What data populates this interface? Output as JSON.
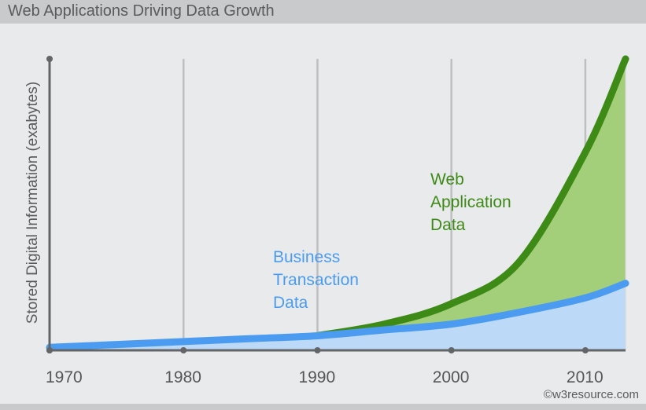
{
  "chart_data": {
    "type": "area",
    "title": "Web Applications Driving Data Growth",
    "ylabel": "Stored Digital Information (exabytes)",
    "xlabel": "",
    "x_ticks": [
      "1970",
      "1980",
      "1990",
      "2000",
      "2010"
    ],
    "xlim": [
      1970,
      2013
    ],
    "ylim": [
      0,
      100
    ],
    "grid": true,
    "stacked": true,
    "series": [
      {
        "name": "Business Transaction Data",
        "label_lines": [
          "Business",
          "Transaction",
          "Data"
        ],
        "color": "#4b9cf0",
        "fill": "#bcd9f7",
        "x": [
          1970,
          1975,
          1980,
          1985,
          1990,
          1995,
          2000,
          2005,
          2010,
          2013
        ],
        "values": [
          1,
          2,
          3,
          4,
          5,
          7,
          9,
          13,
          18,
          23
        ]
      },
      {
        "name": "Web Application Data",
        "label_lines": [
          "Web",
          "Application",
          "Data"
        ],
        "color": "#3e8a16",
        "fill": "#a3cf7b",
        "x": [
          1990,
          1995,
          2000,
          2005,
          2010,
          2013
        ],
        "values": [
          0,
          2,
          7,
          17,
          50,
          77
        ]
      }
    ]
  },
  "credit": "©w3resource.com",
  "colors": {
    "background": "#e9eaec",
    "grid": "#bdbfc2",
    "axis": "#646567",
    "title_bar": "#c9cacc"
  }
}
